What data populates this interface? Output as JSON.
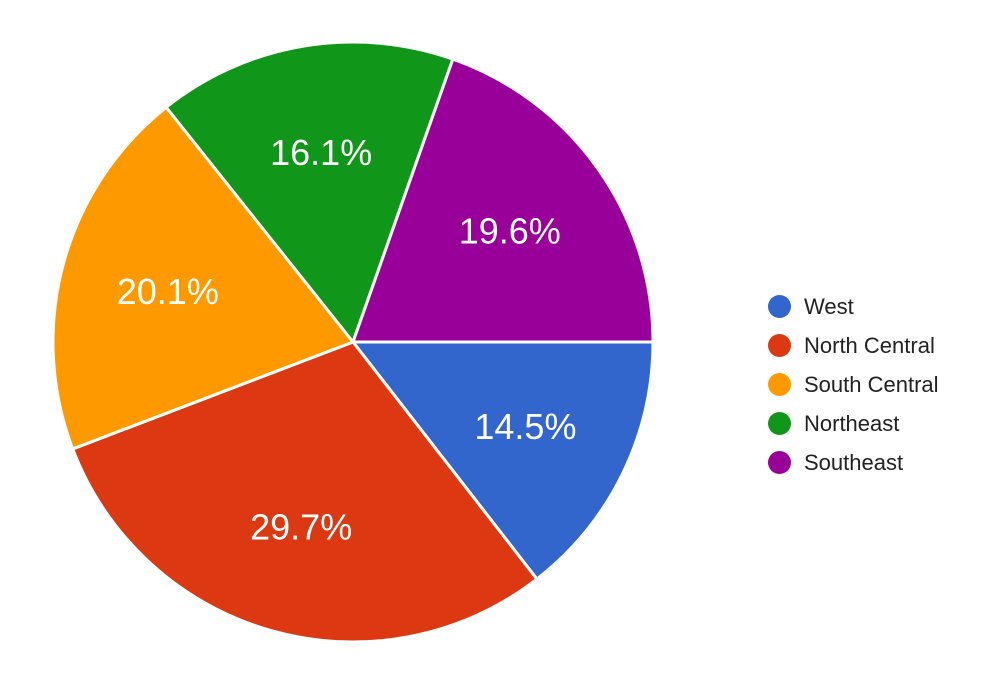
{
  "chart_data": {
    "type": "pie",
    "start_angle_deg": 0,
    "direction": "clockwise",
    "legend_position": "right",
    "slices": [
      {
        "label": "West",
        "value": 14.5,
        "value_label": "14.5%",
        "color": "#3366cc"
      },
      {
        "label": "North Central",
        "value": 29.7,
        "value_label": "29.7%",
        "color": "#dc3912"
      },
      {
        "label": "South Central",
        "value": 20.1,
        "value_label": "20.1%",
        "color": "#ff9900"
      },
      {
        "label": "Northeast",
        "value": 16.1,
        "value_label": "16.1%",
        "color": "#109618"
      },
      {
        "label": "Southeast",
        "value": 19.6,
        "value_label": "19.6%",
        "color": "#990099"
      }
    ]
  }
}
